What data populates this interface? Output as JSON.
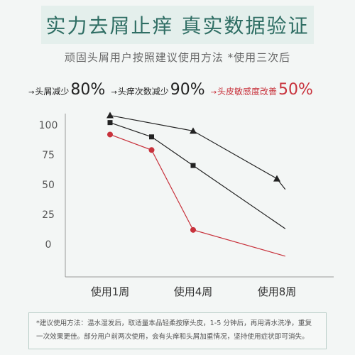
{
  "title": "实力去屑止痒 真实数据验证",
  "subtitle": "顽固头屑用户按照建议使用方法 *使用三次后",
  "colors": {
    "black_series": "#222222",
    "red_series": "#c8323c",
    "accent": "#2f6e64"
  },
  "legend": [
    {
      "marker": "→",
      "label": "头屑减少",
      "value": "80%",
      "color": "#222222"
    },
    {
      "marker": "→",
      "label": "头痒次数减少",
      "value": "90%",
      "color": "#222222"
    },
    {
      "marker": "→",
      "label": "头皮敏感度改善",
      "value": "50%",
      "color": "#c8323c"
    }
  ],
  "note": {
    "line1": "*建议使用方法：温水湿发后，取适量本品轻柔按摩头皮，1-5 分钟后，再用清水洗净，重复",
    "line2": "一次效果更佳。部分用户前两次使用，会有头痒和头屑加重情况，坚持使用症状即可消失。"
  },
  "chart_data": {
    "type": "line",
    "categories": [
      "使用1周",
      "使用4周",
      "使用8周"
    ],
    "y_ticks": [
      100,
      75,
      50,
      25,
      0
    ],
    "ylim": [
      -10,
      110
    ],
    "grid": false,
    "series": [
      {
        "marker": "triangle",
        "color": "#222222",
        "points": [
          [
            0.0,
            108
          ],
          [
            1.0,
            95
          ],
          [
            2.0,
            55
          ],
          [
            2.1,
            46
          ]
        ]
      },
      {
        "marker": "square",
        "color": "#222222",
        "points": [
          [
            0.0,
            102
          ],
          [
            0.5,
            90
          ],
          [
            1.0,
            66
          ],
          [
            2.1,
            13
          ]
        ]
      },
      {
        "marker": "circle",
        "color": "#c8323c",
        "points": [
          [
            0.0,
            92
          ],
          [
            0.5,
            79
          ],
          [
            1.0,
            12
          ],
          [
            2.1,
            -10
          ]
        ]
      }
    ]
  }
}
